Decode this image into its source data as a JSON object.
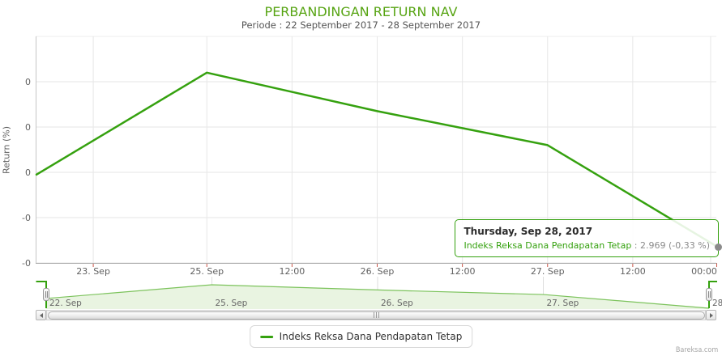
{
  "header": {
    "title": "PERBANDINGAN RETURN NAV",
    "subtitle": "Periode : 22 September 2017 - 28 September 2017"
  },
  "chart_data": {
    "type": "line",
    "title": "PERBANDINGAN RETURN NAV",
    "subtitle": "Periode : 22 September 2017 - 28 September 2017",
    "xlabel": "",
    "ylabel": "Return (%)",
    "x": [
      "22 Sep 2017",
      "25 Sep 2017",
      "26 Sep 2017",
      "27 Sep 2017",
      "28 Sep 2017"
    ],
    "series": [
      {
        "name": "Indeks Reksa Dana Pendapatan Tetap",
        "values": [
          -0.01,
          0.44,
          0.27,
          0.12,
          -0.33
        ]
      }
    ],
    "x_tick_labels": [
      "23. Sep",
      "25. Sep",
      "12:00",
      "26. Sep",
      "12:00",
      "27. Sep",
      "12:00",
      "00:00"
    ],
    "y_tick_labels": [
      "0",
      "0",
      "0",
      "-0",
      "-0"
    ],
    "y_tick_values": [
      0.4,
      0.2,
      0,
      -0.2,
      -0.4
    ],
    "ylim": [
      -0.45,
      0.5
    ],
    "grid": true,
    "legend_position": "bottom-center",
    "last_point": {
      "date": "Thursday, Sep 28, 2017",
      "nav": "2.969",
      "return_pct": "-0,33 %"
    }
  },
  "tooltip": {
    "header": "Thursday, Sep 28, 2017",
    "series_name": "Indeks Reksa Dana Pendapatan Tetap",
    "separator": " : ",
    "value": "2.969 (-0,33 %)"
  },
  "legend": {
    "label": "Indeks Reksa Dana Pendapatan Tetap"
  },
  "navigator": {
    "tick_labels": [
      "22. Sep",
      "25. Sep",
      "26. Sep",
      "27. Sep",
      "28."
    ]
  },
  "watermark": "Bareksa.com",
  "colors": {
    "title_green": "#57a413",
    "series_green": "#35a10f",
    "navigator_line": "#7cc35c",
    "navigator_fill": "#e9f4e1",
    "tick_red": "#cc5649",
    "grid_gray": "#e6e6e6",
    "marker_gray": "#8c8c8c"
  }
}
